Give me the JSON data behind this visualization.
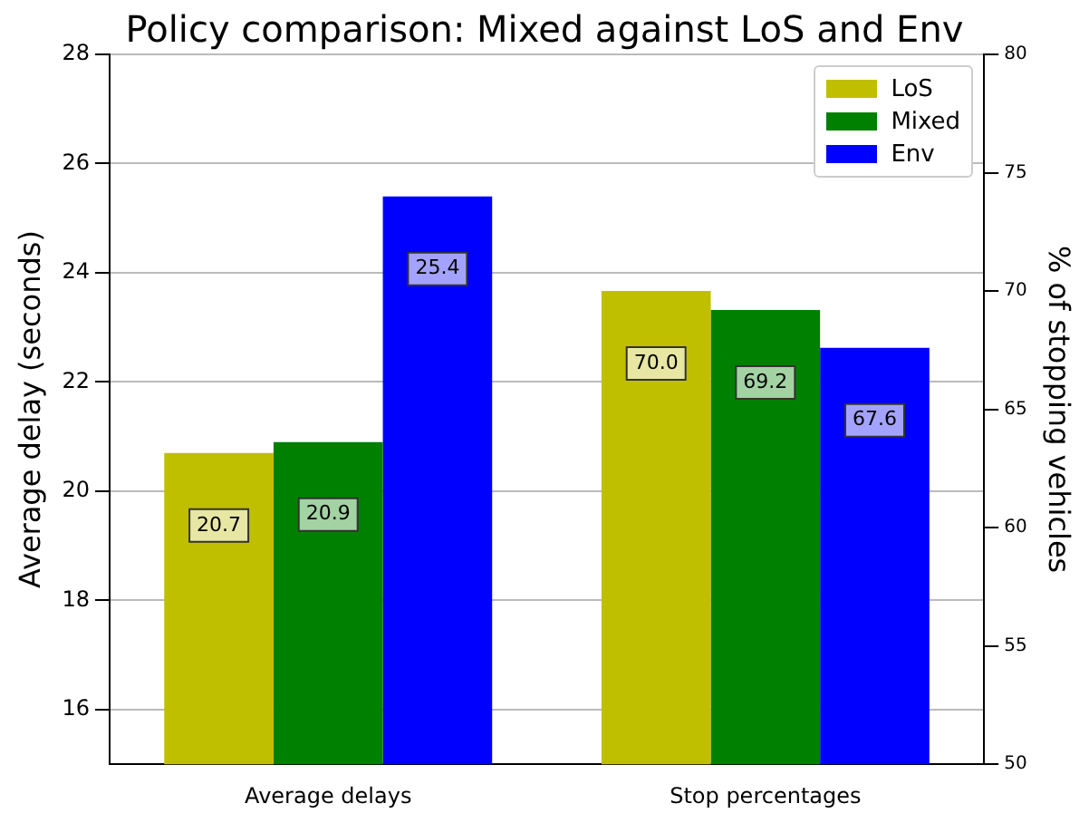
{
  "chart_data": {
    "type": "bar",
    "title": "Policy comparison: Mixed against LoS and Env",
    "ylabel": "Average delay (seconds)",
    "y2label": "% of stopping vehicles",
    "categories": [
      "Average delays",
      "Stop percentages"
    ],
    "series": [
      {
        "name": "LoS",
        "color": "#bfbf00",
        "values": [
          20.7,
          null
        ],
        "value_labels": [
          "20.7",
          null
        ],
        "axis": "y"
      },
      {
        "name": "Mixed",
        "color": "#008000",
        "values": [
          20.9,
          null
        ],
        "value_labels": [
          "20.9",
          null
        ],
        "axis": "y"
      },
      {
        "name": "Env",
        "color": "#0000ff",
        "values": [
          25.4,
          null
        ],
        "value_labels": [
          "25.4",
          null
        ],
        "axis": "y"
      },
      {
        "color": "#bfbf00",
        "values": [
          null,
          70.0
        ],
        "value_labels": [
          null,
          "70.0"
        ],
        "axis": "y2"
      },
      {
        "color": "#008000",
        "values": [
          null,
          69.2
        ],
        "value_labels": [
          null,
          "69.2"
        ],
        "axis": "y2"
      },
      {
        "color": "#0000ff",
        "values": [
          null,
          67.6
        ],
        "value_labels": [
          null,
          "67.6"
        ],
        "axis": "y2"
      }
    ],
    "ylim": [
      15,
      28
    ],
    "yticks": [
      16,
      18,
      20,
      22,
      24,
      26,
      28
    ],
    "y2lim": [
      50,
      80
    ],
    "y2ticks": [
      50,
      55,
      60,
      65,
      70,
      75,
      80
    ],
    "grid": "y",
    "legend": "top right"
  }
}
